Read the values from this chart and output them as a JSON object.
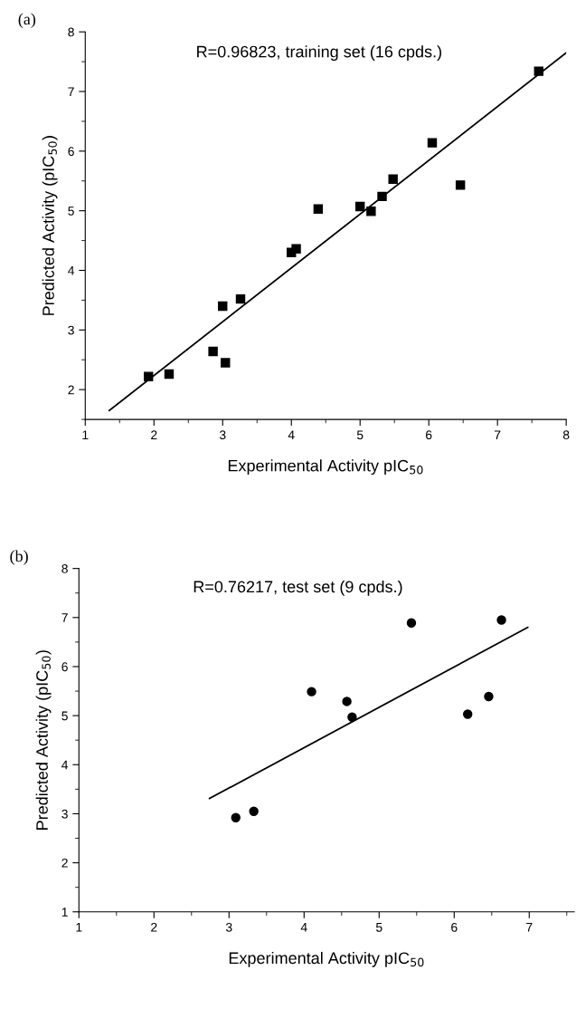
{
  "chart_data": [
    {
      "type": "scatter",
      "xlabel": "Experimental Activity pIC$_{50}$",
      "ylabel": "Predicted Activity (pIC$_{50}$)",
      "annotations": [
        "(a)",
        "R=0.96823, training set (16 cpds.)"
      ],
      "xlim": [
        1,
        8
      ],
      "ylim": [
        1.5,
        8
      ],
      "xticks": [
        1,
        2,
        3,
        4,
        5,
        6,
        7,
        8
      ],
      "yticks": [
        2,
        3,
        4,
        5,
        6,
        7,
        8
      ],
      "grid": false,
      "series": [
        {
          "type": "scatter",
          "marker": "square",
          "color": "#000000",
          "x": [
            1.92,
            2.22,
            2.86,
            3.04,
            3.0,
            3.26,
            4.0,
            4.07,
            4.39,
            5.0,
            5.16,
            5.32,
            5.48,
            6.05,
            6.46,
            7.6
          ],
          "values": [
            2.22,
            2.26,
            2.64,
            2.45,
            3.4,
            3.52,
            4.3,
            4.36,
            5.03,
            5.07,
            4.99,
            5.24,
            5.53,
            6.14,
            5.43,
            7.34
          ]
        },
        {
          "type": "line",
          "marker": "none",
          "line_style": "solid",
          "color": "#000000",
          "x": [
            1.35,
            8.0
          ],
          "values": [
            1.65,
            7.65
          ]
        }
      ]
    },
    {
      "type": "scatter",
      "xlabel": "Experimental Activity pIC$_{50}$",
      "ylabel": "Predicted Activity (pIC$_{50}$)",
      "annotations": [
        "(b)",
        "R=0.76217, test set (9 cpds.)"
      ],
      "xlim": [
        1,
        7.6
      ],
      "ylim": [
        1,
        8
      ],
      "xticks": [
        1,
        2,
        3,
        4,
        5,
        6,
        7
      ],
      "yticks": [
        1,
        2,
        3,
        4,
        5,
        6,
        7,
        8
      ],
      "grid": false,
      "series": [
        {
          "type": "scatter",
          "marker": "circle",
          "color": "#000000",
          "x": [
            3.09,
            3.33,
            4.1,
            4.57,
            4.64,
            5.43,
            6.18,
            6.46,
            6.63
          ],
          "values": [
            2.92,
            3.05,
            5.49,
            5.29,
            4.97,
            6.89,
            5.03,
            5.39,
            6.95
          ]
        },
        {
          "type": "line",
          "marker": "none",
          "line_style": "solid",
          "color": "#000000",
          "x": [
            2.74,
            6.98
          ],
          "values": [
            3.31,
            6.8
          ]
        }
      ]
    }
  ]
}
